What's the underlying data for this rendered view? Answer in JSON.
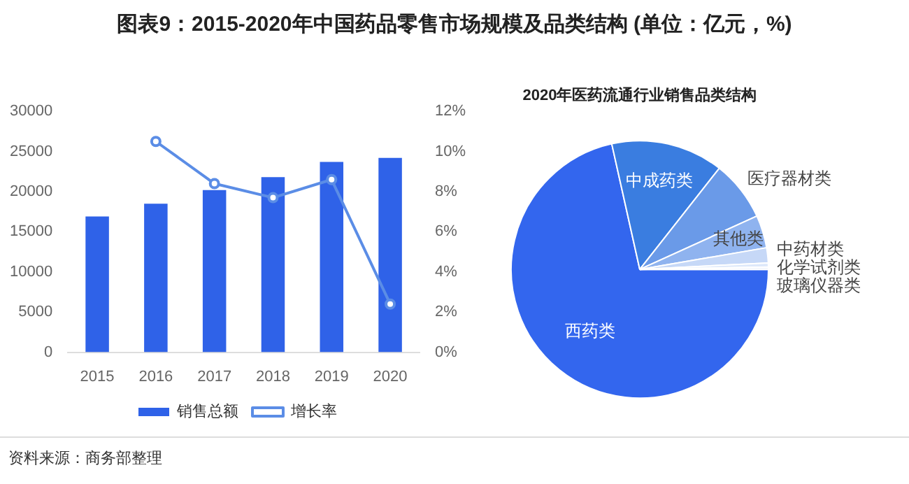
{
  "chart_data": [
    {
      "type": "bar",
      "title": "图表9：2015-2020年中国药品零售市场规模及品类结构 (单位：亿元，%)",
      "categories": [
        "2015",
        "2016",
        "2017",
        "2018",
        "2019",
        "2020"
      ],
      "series": [
        {
          "name": "销售总额",
          "type": "bar",
          "color": "#2f62e8",
          "values": [
            16900,
            18500,
            20200,
            21800,
            23700,
            24200
          ]
        },
        {
          "name": "增长率",
          "type": "line",
          "axis": "y2",
          "color": "#5b8de6",
          "values": [
            null,
            10.5,
            8.4,
            7.7,
            8.6,
            2.4
          ]
        }
      ],
      "ylim": [
        0,
        30000
      ],
      "yticks": [
        0,
        5000,
        10000,
        15000,
        20000,
        25000,
        30000
      ],
      "y2lim": [
        0,
        12
      ],
      "y2ticks": [
        {
          "value": 0,
          "label": "0%"
        },
        {
          "value": 2,
          "label": "2%"
        },
        {
          "value": 4,
          "label": "4%"
        },
        {
          "value": 6,
          "label": "6%"
        },
        {
          "value": 8,
          "label": "8%"
        },
        {
          "value": 10,
          "label": "10%"
        },
        {
          "value": 12,
          "label": "12%"
        }
      ],
      "grid": false,
      "legend": "bottom",
      "marker": "circle",
      "line_style": "solid",
      "annotations": [
        "资料来源：商务部整理"
      ]
    },
    {
      "type": "pie",
      "title": "2020年医药流通行业销售品类结构",
      "categories": [
        "西药类",
        "中成药类",
        "医疗器材类",
        "其他类",
        "中药材类",
        "化学试剂类",
        "玻璃仪器类"
      ],
      "values": [
        71.5,
        14.1,
        7.6,
        4.1,
        1.9,
        0.5,
        0.3
      ],
      "colors": [
        "#3366ee",
        "#3a7de0",
        "#6a9ae8",
        "#8fb3ef",
        "#c6d8f7",
        "#dde8fa",
        "#eef3fc"
      ],
      "legend": false
    }
  ]
}
